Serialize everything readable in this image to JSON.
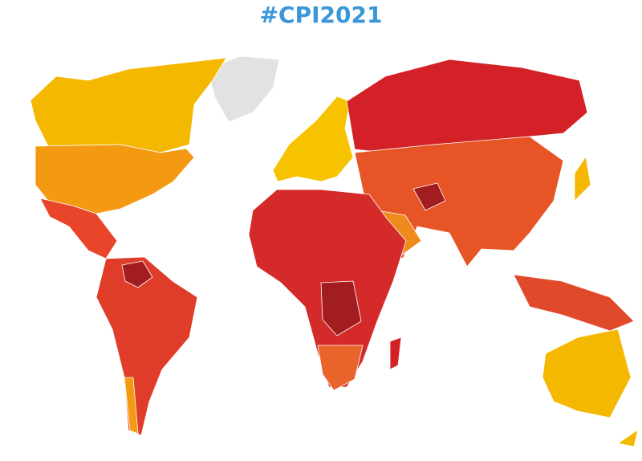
{
  "title": "#CPI2021"
}
